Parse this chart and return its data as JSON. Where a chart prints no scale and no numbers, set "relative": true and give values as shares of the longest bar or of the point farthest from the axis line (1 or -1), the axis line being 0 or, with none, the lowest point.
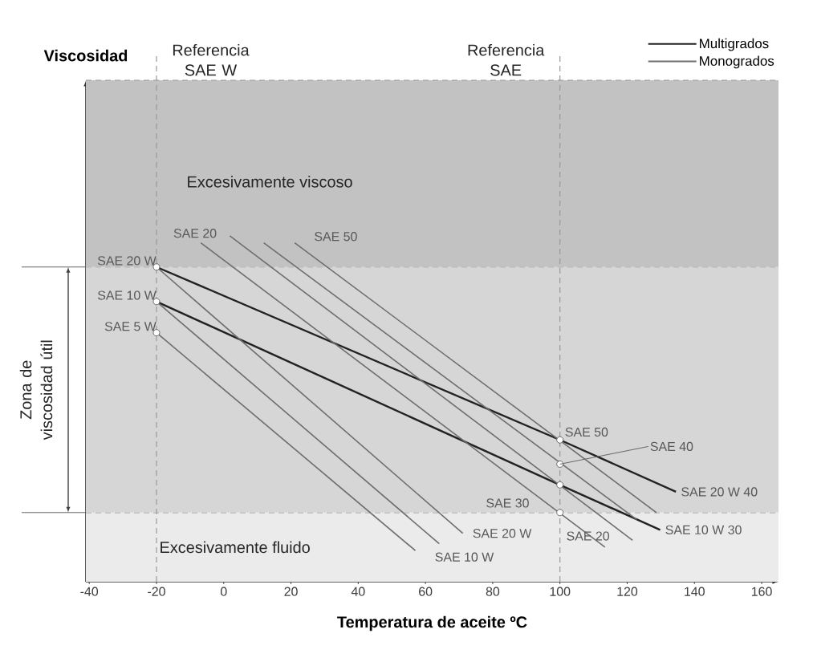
{
  "chart_data": {
    "type": "line",
    "relative": true,
    "xlabel": "Temperatura de aceite ºC",
    "xlim": [
      -41,
      165
    ],
    "xticks": [
      -40,
      -20,
      0,
      20,
      40,
      60,
      80,
      100,
      120,
      140,
      160
    ],
    "legend": "top right",
    "series": [
      {
        "name": "Multigrados",
        "color": "#222222",
        "x": [
          -20,
          100,
          134.5
        ],
        "values": [
          0.91,
          0.41,
          0.26
        ]
      },
      {
        "color": "#222222",
        "x": [
          -20,
          100,
          129.8
        ],
        "values": [
          0.81,
          0.28,
          0.15
        ]
      },
      {
        "name": "Monogrados",
        "color": "#6e6e6e",
        "x": [
          -6.8,
          113.4
        ],
        "values": [
          0.98,
          0.1
        ]
      },
      {
        "color": "#6e6e6e",
        "x": [
          1.8,
          121.6
        ],
        "values": [
          1.0,
          0.12
        ]
      },
      {
        "color": "#6e6e6e",
        "x": [
          11.9,
          122.8
        ],
        "values": [
          0.98,
          0.18
        ]
      },
      {
        "color": "#6e6e6e",
        "x": [
          21.1,
          128.7
        ],
        "values": [
          0.98,
          0.2
        ]
      },
      {
        "color": "#6e6e6e",
        "x": [
          -20,
          57.0
        ],
        "values": [
          0.72,
          0.09
        ]
      },
      {
        "color": "#6e6e6e",
        "x": [
          -20,
          64.1
        ],
        "values": [
          0.81,
          0.11
        ]
      },
      {
        "color": "#6e6e6e",
        "x": [
          -20,
          71.1
        ],
        "values": [
          0.91,
          0.14
        ]
      },
      {
        "type": "scatter",
        "marker": "circle",
        "color": "#ffffff",
        "x": [
          -20,
          -20,
          -20,
          100,
          100,
          100,
          100
        ],
        "values": [
          0.91,
          0.81,
          0.72,
          0.41,
          0.34,
          0.28,
          0.2
        ]
      }
    ],
    "bands": [
      {
        "axis": "y",
        "from": 0,
        "to": 0.2,
        "label": "Excesivamente fluido",
        "color": "#ebebeb"
      },
      {
        "axis": "y",
        "from": 0.2,
        "to": 0.91,
        "label": "Zona de viscosidad útil",
        "color": "#d6d6d6"
      },
      {
        "axis": "y",
        "from": 0.91,
        "to": 1.45,
        "label": "Excesivamente viscoso",
        "color": "#c2c2c2"
      }
    ],
    "ref_lines": [
      {
        "axis": "x",
        "value": -20,
        "label": "Referencia SAE W",
        "color": "#999999",
        "line_style": "dashed"
      },
      {
        "axis": "x",
        "value": 100,
        "label": "Referencia SAE",
        "color": "#999999",
        "line_style": "dashed"
      }
    ],
    "annotations": [
      "Viscosidad",
      {
        "text": "SAE 20 W",
        "x": -20,
        "y": 0.91
      },
      {
        "text": "SAE 10 W",
        "x": -20,
        "y": 0.81
      },
      {
        "text": "SAE 5 W",
        "x": -20,
        "y": 0.72
      },
      {
        "text": "SAE 20",
        "x": -6.8,
        "y": 0.98
      },
      {
        "text": "SAE 50",
        "x": 21.1,
        "y": 0.98
      },
      {
        "text": "SAE 50",
        "x": 100,
        "y": 0.41
      },
      {
        "text": "SAE 40",
        "x": 100,
        "y": 0.34
      },
      {
        "text": "SAE 30",
        "x": 100,
        "y": 0.2
      },
      {
        "text": "SAE 20",
        "x": 113.4,
        "y": 0.1
      },
      {
        "text": "SAE 20 W",
        "x": 71.1,
        "y": 0.14
      },
      {
        "text": "SAE 10 W",
        "x": 57.0,
        "y": 0.09
      },
      {
        "text": "SAE 20 W 40",
        "x": 134.5,
        "y": 0.26
      },
      {
        "text": "SAE 10 W 30",
        "x": 129.8,
        "y": 0.15
      }
    ]
  }
}
